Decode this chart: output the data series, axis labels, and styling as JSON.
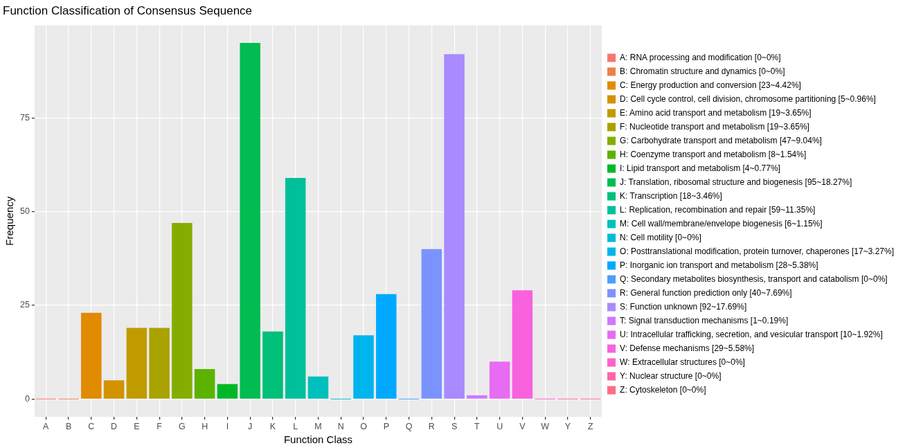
{
  "chart_data": {
    "type": "bar",
    "title": "Function Classification of Consensus Sequence",
    "xlabel": "Function Class",
    "ylabel": "Frequency",
    "categories": [
      "A",
      "B",
      "C",
      "D",
      "E",
      "F",
      "G",
      "H",
      "I",
      "J",
      "K",
      "L",
      "M",
      "N",
      "O",
      "P",
      "Q",
      "R",
      "S",
      "T",
      "U",
      "V",
      "W",
      "Y",
      "Z"
    ],
    "ylim": [
      -4.75,
      99.75
    ],
    "yticks": [
      0,
      25,
      50,
      75
    ],
    "grid": true,
    "legend": "right",
    "series": [
      {
        "name": "A: RNA processing and modification [0~0%]",
        "color": "#f8766d",
        "values": [
          0,
          null,
          null,
          null,
          null,
          null,
          null,
          null,
          null,
          null,
          null,
          null,
          null,
          null,
          null,
          null,
          null,
          null,
          null,
          null,
          null,
          null,
          null,
          null,
          null
        ]
      },
      {
        "name": "B: Chromatin structure and dynamics [0~0%]",
        "color": "#ee7f48",
        "values": [
          null,
          0,
          null,
          null,
          null,
          null,
          null,
          null,
          null,
          null,
          null,
          null,
          null,
          null,
          null,
          null,
          null,
          null,
          null,
          null,
          null,
          null,
          null,
          null,
          null
        ]
      },
      {
        "name": "C: Energy production and conversion [23~4.42%]",
        "color": "#e28a00",
        "values": [
          null,
          null,
          23,
          null,
          null,
          null,
          null,
          null,
          null,
          null,
          null,
          null,
          null,
          null,
          null,
          null,
          null,
          null,
          null,
          null,
          null,
          null,
          null,
          null,
          null
        ]
      },
      {
        "name": "D: Cell cycle control, cell division, chromosome partitioning [5~0.96%]",
        "color": "#d39200",
        "values": [
          null,
          null,
          null,
          5,
          null,
          null,
          null,
          null,
          null,
          null,
          null,
          null,
          null,
          null,
          null,
          null,
          null,
          null,
          null,
          null,
          null,
          null,
          null,
          null,
          null
        ]
      },
      {
        "name": "E: Amino acid transport and metabolism [19~3.65%]",
        "color": "#c09b00",
        "values": [
          null,
          null,
          null,
          null,
          19,
          null,
          null,
          null,
          null,
          null,
          null,
          null,
          null,
          null,
          null,
          null,
          null,
          null,
          null,
          null,
          null,
          null,
          null,
          null,
          null
        ]
      },
      {
        "name": "F: Nucleotide transport and metabolism [19~3.65%]",
        "color": "#a9a200",
        "values": [
          null,
          null,
          null,
          null,
          null,
          19,
          null,
          null,
          null,
          null,
          null,
          null,
          null,
          null,
          null,
          null,
          null,
          null,
          null,
          null,
          null,
          null,
          null,
          null,
          null
        ]
      },
      {
        "name": "G: Carbohydrate transport and metabolism [47~9.04%]",
        "color": "#85ad00",
        "values": [
          null,
          null,
          null,
          null,
          null,
          null,
          47,
          null,
          null,
          null,
          null,
          null,
          null,
          null,
          null,
          null,
          null,
          null,
          null,
          null,
          null,
          null,
          null,
          null,
          null
        ]
      },
      {
        "name": "H: Coenzyme transport and metabolism [8~1.54%]",
        "color": "#5bb300",
        "values": [
          null,
          null,
          null,
          null,
          null,
          null,
          null,
          8,
          null,
          null,
          null,
          null,
          null,
          null,
          null,
          null,
          null,
          null,
          null,
          null,
          null,
          null,
          null,
          null,
          null
        ]
      },
      {
        "name": "I: Lipid transport and metabolism [4~0.77%]",
        "color": "#00b826",
        "values": [
          null,
          null,
          null,
          null,
          null,
          null,
          null,
          null,
          4,
          null,
          null,
          null,
          null,
          null,
          null,
          null,
          null,
          null,
          null,
          null,
          null,
          null,
          null,
          null,
          null
        ]
      },
      {
        "name": "J: Translation, ribosomal structure and biogenesis [95~18.27%]",
        "color": "#00bc51",
        "values": [
          null,
          null,
          null,
          null,
          null,
          null,
          null,
          null,
          null,
          95,
          null,
          null,
          null,
          null,
          null,
          null,
          null,
          null,
          null,
          null,
          null,
          null,
          null,
          null,
          null
        ]
      },
      {
        "name": "K: Transcription [18~3.46%]",
        "color": "#00bf78",
        "values": [
          null,
          null,
          null,
          null,
          null,
          null,
          null,
          null,
          null,
          null,
          18,
          null,
          null,
          null,
          null,
          null,
          null,
          null,
          null,
          null,
          null,
          null,
          null,
          null,
          null
        ]
      },
      {
        "name": "L: Replication, recombination and repair [59~11.35%]",
        "color": "#00c09b",
        "values": [
          null,
          null,
          null,
          null,
          null,
          null,
          null,
          null,
          null,
          null,
          null,
          59,
          null,
          null,
          null,
          null,
          null,
          null,
          null,
          null,
          null,
          null,
          null,
          null,
          null
        ]
      },
      {
        "name": "M: Cell wall/membrane/envelope biogenesis [6~1.15%]",
        "color": "#00c0bb",
        "values": [
          null,
          null,
          null,
          null,
          null,
          null,
          null,
          null,
          null,
          null,
          null,
          null,
          6,
          null,
          null,
          null,
          null,
          null,
          null,
          null,
          null,
          null,
          null,
          null,
          null
        ]
      },
      {
        "name": "N: Cell motility [0~0%]",
        "color": "#00bcd6",
        "values": [
          null,
          null,
          null,
          null,
          null,
          null,
          null,
          null,
          null,
          null,
          null,
          null,
          null,
          0,
          null,
          null,
          null,
          null,
          null,
          null,
          null,
          null,
          null,
          null,
          null
        ]
      },
      {
        "name": "O: Posttranslational modification, protein turnover, chaperones [17~3.27%]",
        "color": "#00b5ed",
        "values": [
          null,
          null,
          null,
          null,
          null,
          null,
          null,
          null,
          null,
          null,
          null,
          null,
          null,
          null,
          17,
          null,
          null,
          null,
          null,
          null,
          null,
          null,
          null,
          null,
          null
        ]
      },
      {
        "name": "P: Inorganic ion transport and metabolism [28~5.38%]",
        "color": "#00a9ff",
        "values": [
          null,
          null,
          null,
          null,
          null,
          null,
          null,
          null,
          null,
          null,
          null,
          null,
          null,
          null,
          null,
          28,
          null,
          null,
          null,
          null,
          null,
          null,
          null,
          null,
          null
        ]
      },
      {
        "name": "Q: Secondary metabolites biosynthesis, transport and catabolism [0~0%]",
        "color": "#4a9fff",
        "values": [
          null,
          null,
          null,
          null,
          null,
          null,
          null,
          null,
          null,
          null,
          null,
          null,
          null,
          null,
          null,
          null,
          0,
          null,
          null,
          null,
          null,
          null,
          null,
          null,
          null
        ]
      },
      {
        "name": "R: General function prediction only [40~7.69%]",
        "color": "#7b93ff",
        "values": [
          null,
          null,
          null,
          null,
          null,
          null,
          null,
          null,
          null,
          null,
          null,
          null,
          null,
          null,
          null,
          null,
          null,
          40,
          null,
          null,
          null,
          null,
          null,
          null,
          null
        ]
      },
      {
        "name": "S: Function unknown [92~17.69%]",
        "color": "#a98aff",
        "values": [
          null,
          null,
          null,
          null,
          null,
          null,
          null,
          null,
          null,
          null,
          null,
          null,
          null,
          null,
          null,
          null,
          null,
          null,
          92,
          null,
          null,
          null,
          null,
          null,
          null
        ]
      },
      {
        "name": "T: Signal transduction mechanisms [1~0.19%]",
        "color": "#cf78ff",
        "values": [
          null,
          null,
          null,
          null,
          null,
          null,
          null,
          null,
          null,
          null,
          null,
          null,
          null,
          null,
          null,
          null,
          null,
          null,
          null,
          1,
          null,
          null,
          null,
          null,
          null
        ]
      },
      {
        "name": "U: Intracellular trafficking, secretion, and vesicular transport [10~1.92%]",
        "color": "#e86bf3",
        "values": [
          null,
          null,
          null,
          null,
          null,
          null,
          null,
          null,
          null,
          null,
          null,
          null,
          null,
          null,
          null,
          null,
          null,
          null,
          null,
          null,
          10,
          null,
          null,
          null,
          null
        ]
      },
      {
        "name": "V: Defense mechanisms [29~5.58%]",
        "color": "#f862df",
        "values": [
          null,
          null,
          null,
          null,
          null,
          null,
          null,
          null,
          null,
          null,
          null,
          null,
          null,
          null,
          null,
          null,
          null,
          null,
          null,
          null,
          null,
          29,
          null,
          null,
          null
        ]
      },
      {
        "name": "W: Extracellular structures [0~0%]",
        "color": "#ff61c6",
        "values": [
          null,
          null,
          null,
          null,
          null,
          null,
          null,
          null,
          null,
          null,
          null,
          null,
          null,
          null,
          null,
          null,
          null,
          null,
          null,
          null,
          null,
          null,
          0,
          null,
          null
        ]
      },
      {
        "name": "Y: Nuclear structure [0~0%]",
        "color": "#ff65a9",
        "values": [
          null,
          null,
          null,
          null,
          null,
          null,
          null,
          null,
          null,
          null,
          null,
          null,
          null,
          null,
          null,
          null,
          null,
          null,
          null,
          null,
          null,
          null,
          null,
          0,
          null
        ]
      },
      {
        "name": "Z: Cytoskeleton [0~0%]",
        "color": "#fc6d8a",
        "values": [
          null,
          null,
          null,
          null,
          null,
          null,
          null,
          null,
          null,
          null,
          null,
          null,
          null,
          null,
          null,
          null,
          null,
          null,
          null,
          null,
          null,
          null,
          null,
          null,
          0
        ]
      }
    ]
  }
}
